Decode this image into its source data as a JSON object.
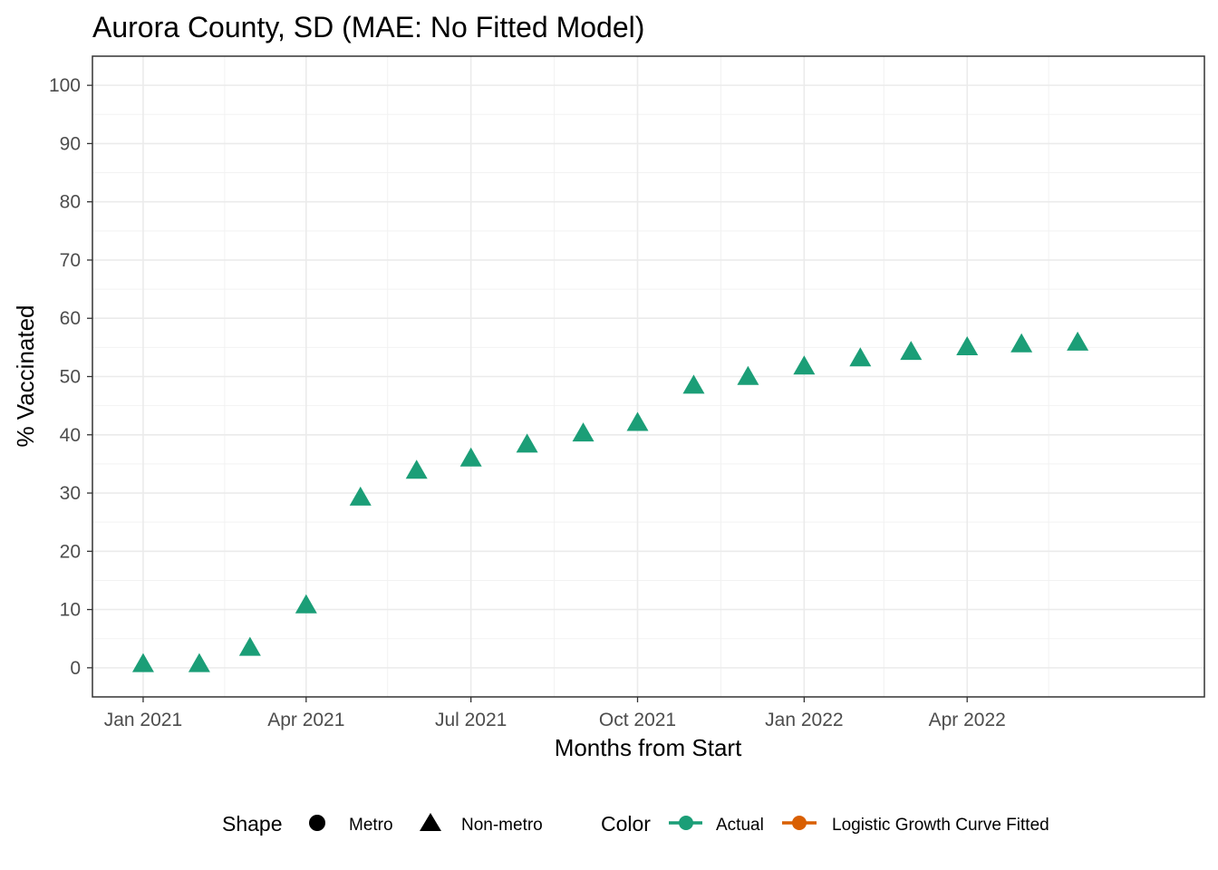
{
  "chart_data": {
    "type": "scatter",
    "title": "Aurora County, SD (MAE: No Fitted Model)",
    "xlabel": "Months from Start",
    "ylabel": "% Vaccinated",
    "ylim": [
      -5,
      105
    ],
    "yticks": [
      0,
      10,
      20,
      30,
      40,
      50,
      60,
      70,
      80,
      90,
      100
    ],
    "xlim": [
      "2020-12-04",
      "2022-08-10"
    ],
    "xticks": [
      {
        "date": "2021-01-01",
        "label": "Jan 2021"
      },
      {
        "date": "2021-04-01",
        "label": "Apr 2021"
      },
      {
        "date": "2021-07-01",
        "label": "Jul 2021"
      },
      {
        "date": "2021-10-01",
        "label": "Oct 2021"
      },
      {
        "date": "2022-01-01",
        "label": "Jan 2022"
      },
      {
        "date": "2022-04-01",
        "label": "Apr 2022"
      }
    ],
    "minor_x_gridlines": [
      "2021-02-15",
      "2021-05-16",
      "2021-08-16",
      "2021-11-16",
      "2022-02-14",
      "2022-05-16"
    ],
    "grid": true,
    "legend_position": "bottom",
    "series": [
      {
        "name": "Actual",
        "shape": "Non-metro",
        "color": "#1b9e77",
        "points": [
          {
            "x": "2021-01-01",
            "y": 0.5
          },
          {
            "x": "2021-02-01",
            "y": 0.5
          },
          {
            "x": "2021-03-01",
            "y": 3.3
          },
          {
            "x": "2021-04-01",
            "y": 10.6
          },
          {
            "x": "2021-05-01",
            "y": 29.1
          },
          {
            "x": "2021-06-01",
            "y": 33.7
          },
          {
            "x": "2021-07-01",
            "y": 35.8
          },
          {
            "x": "2021-08-01",
            "y": 38.2
          },
          {
            "x": "2021-09-01",
            "y": 40.1
          },
          {
            "x": "2021-10-01",
            "y": 41.9
          },
          {
            "x": "2021-11-01",
            "y": 48.3
          },
          {
            "x": "2021-12-01",
            "y": 49.8
          },
          {
            "x": "2022-01-01",
            "y": 51.6
          },
          {
            "x": "2022-02-01",
            "y": 53.0
          },
          {
            "x": "2022-03-01",
            "y": 54.1
          },
          {
            "x": "2022-04-01",
            "y": 54.9
          },
          {
            "x": "2022-05-01",
            "y": 55.4
          },
          {
            "x": "2022-06-01",
            "y": 55.7
          }
        ]
      }
    ],
    "legend": {
      "shape_title": "Shape",
      "shape_items": [
        {
          "label": "Metro",
          "symbol": "circle"
        },
        {
          "label": "Non-metro",
          "symbol": "triangle"
        }
      ],
      "color_title": "Color",
      "color_items": [
        {
          "label": "Actual",
          "color": "#1b9e77"
        },
        {
          "label": "Logistic Growth Curve Fitted",
          "color": "#d95f02"
        }
      ]
    }
  }
}
